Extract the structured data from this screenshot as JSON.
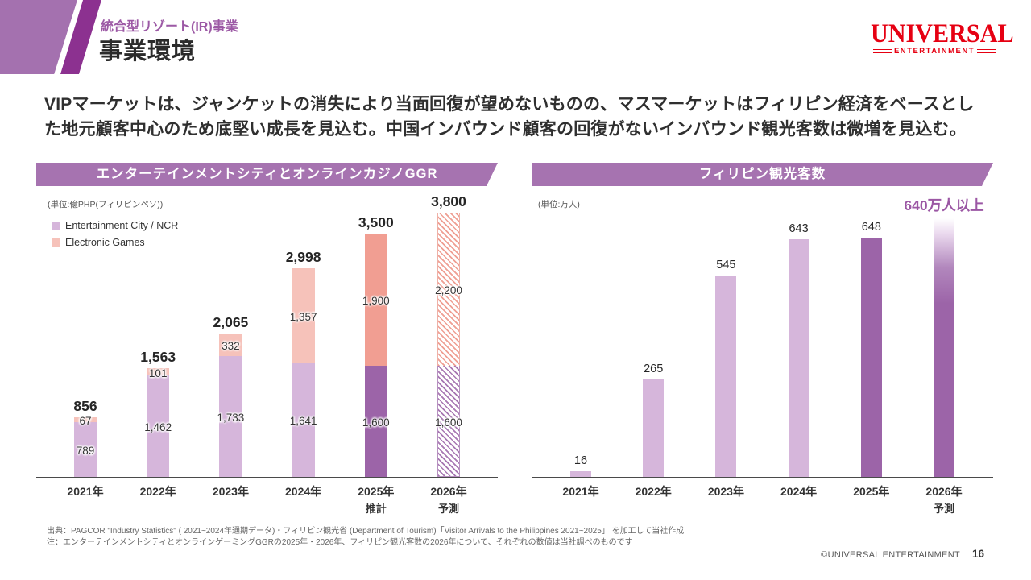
{
  "header": {
    "category": "統合型リゾート(IR)事業",
    "title": "事業環境",
    "logo": {
      "primary": "UNIVERSAL",
      "secondary": "ENTERTAINMENT"
    }
  },
  "summary": {
    "line1": "VIPマーケットは、ジャンケットの消失により当面回復が望めないものの、マスマーケットはフィリピン経済をベースとし",
    "line2": "た地元顧客中心のため底堅い成長を見込む。中国インバウンド顧客の回復がないインバウンド観光客数は微増を見込む。"
  },
  "chart_data": [
    {
      "type": "bar",
      "stacked": true,
      "title": "エンターテインメントシティとオンラインカジノGGR",
      "unit_label": "(単位:億PHP(フィリピンペソ))",
      "legend_position": "top-left",
      "categories": [
        "2021年",
        "2022年",
        "2023年",
        "2024年",
        "2025年",
        "2026年"
      ],
      "category_sublabels": [
        "",
        "",
        "",
        "",
        "推計",
        "予測"
      ],
      "series": [
        {
          "name": "Entertainment City / NCR",
          "values": [
            789,
            1462,
            1733,
            1641,
            1600,
            1600
          ],
          "labels": [
            "789",
            "1,462",
            "1,733",
            "1,641",
            "1,600",
            "1,600"
          ]
        },
        {
          "name": "Electronic Games",
          "values": [
            67,
            101,
            332,
            1357,
            1900,
            2200
          ],
          "labels": [
            "67",
            "101",
            "332",
            "1,357",
            "1,900",
            "2,200"
          ]
        }
      ],
      "totals": [
        "856",
        "1,563",
        "2,065",
        "2,998",
        "3,500",
        "3,800"
      ],
      "bar_styles": [
        "light",
        "light",
        "light",
        "light",
        "solid",
        "hatched"
      ],
      "ylim": [
        0,
        3800
      ]
    },
    {
      "type": "bar",
      "stacked": false,
      "title": "フィリピン観光客数",
      "unit_label": "(単位:万人)",
      "categories": [
        "2021年",
        "2022年",
        "2023年",
        "2024年",
        "2025年",
        "2026年"
      ],
      "category_sublabels": [
        "",
        "",
        "",
        "",
        "",
        "予測"
      ],
      "values": [
        16,
        265,
        545,
        643,
        648,
        700
      ],
      "value_labels": [
        "16",
        "265",
        "545",
        "643",
        "648",
        ""
      ],
      "annotation": "640万人以上",
      "bar_styles": [
        "light",
        "light",
        "light",
        "light",
        "dark",
        "gradient"
      ],
      "ylim": [
        0,
        700
      ]
    }
  ],
  "footer": {
    "source": "出典：PAGCOR \"Industry Statistics\" ( 2021~2024年通期データ)・フィリピン観光省 (Department of Tourism)「Visitor Arrivals to the Philippines 2021~2025」 を加工して当社作成",
    "note": "注：エンターテインメントシティとオンラインゲーミングGGRの2025年・2026年、フィリピン観光客数の2026年について、それぞれの数値は当社調べのものです",
    "copyright": "©UNIVERSAL ENTERTAINMENT",
    "page_number": "16"
  },
  "colors": {
    "accent_purple": "#a673b0",
    "deco_light_purple": "#a471af",
    "deco_deep_purple": "#8c3190",
    "category_text": "#9c59a5",
    "bar_light_purple": "#d6b6db",
    "bar_dark_purple": "#9c64a8",
    "bar_light_salmon": "#f6c2ba",
    "bar_dark_salmon": "#f19e92",
    "annotation_purple": "#9b57a4",
    "logo_red": "#e60012"
  }
}
